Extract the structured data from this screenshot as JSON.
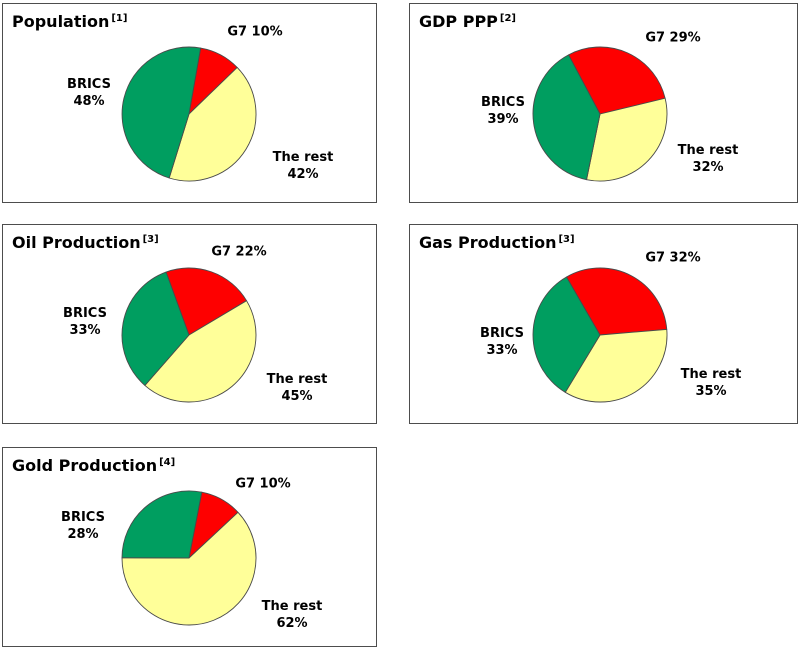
{
  "colors": {
    "g7": "#fe0000",
    "brics": "#009e60",
    "rest": "#ffff99",
    "slice_outline": "#4a4a4a",
    "panel_border": "#4d4d4d",
    "text": "#000000",
    "background": "#ffffff"
  },
  "chart_data": [
    {
      "type": "pie",
      "title": "Population",
      "footnote_ref": "[1]",
      "legend_position": "around",
      "clockwise": true,
      "start_angle_deg": 10,
      "slices": [
        {
          "label": "G7",
          "value": 10,
          "color": "#fe0000"
        },
        {
          "label": "The rest",
          "value": 42,
          "color": "#ffff99"
        },
        {
          "label": "BRICS",
          "value": 48,
          "color": "#009e60"
        }
      ],
      "labels": {
        "g7": "G7 10%",
        "brics_name": "BRICS",
        "brics_value": "48%",
        "rest_name": "The rest",
        "rest_value": "42%"
      }
    },
    {
      "type": "pie",
      "title": "GDP PPP",
      "footnote_ref": "[2]",
      "legend_position": "around",
      "clockwise": true,
      "start_angle_deg": -28,
      "slices": [
        {
          "label": "G7",
          "value": 29,
          "color": "#fe0000"
        },
        {
          "label": "The rest",
          "value": 32,
          "color": "#ffff99"
        },
        {
          "label": "BRICS",
          "value": 39,
          "color": "#009e60"
        }
      ],
      "labels": {
        "g7": "G7 29%",
        "brics_name": "BRICS",
        "brics_value": "39%",
        "rest_name": "The rest",
        "rest_value": "32%"
      }
    },
    {
      "type": "pie",
      "title": "Oil Production",
      "footnote_ref": "[3]",
      "legend_position": "around",
      "clockwise": true,
      "start_angle_deg": -20,
      "slices": [
        {
          "label": "G7",
          "value": 22,
          "color": "#fe0000"
        },
        {
          "label": "The rest",
          "value": 45,
          "color": "#ffff99"
        },
        {
          "label": "BRICS",
          "value": 33,
          "color": "#009e60"
        }
      ],
      "labels": {
        "g7": "G7 22%",
        "brics_name": "BRICS",
        "brics_value": "33%",
        "rest_name": "The rest",
        "rest_value": "45%"
      }
    },
    {
      "type": "pie",
      "title": "Gas Production",
      "footnote_ref": "[3]",
      "legend_position": "around",
      "clockwise": true,
      "start_angle_deg": -30,
      "slices": [
        {
          "label": "G7",
          "value": 32,
          "color": "#fe0000"
        },
        {
          "label": "The rest",
          "value": 35,
          "color": "#ffff99"
        },
        {
          "label": "BRICS",
          "value": 33,
          "color": "#009e60"
        }
      ],
      "labels": {
        "g7": "G7 32%",
        "brics_name": "BRICS",
        "brics_value": "33%",
        "rest_name": "The rest",
        "rest_value": "35%"
      }
    },
    {
      "type": "pie",
      "title": "Gold Production",
      "footnote_ref": "[4]",
      "legend_position": "around",
      "clockwise": true,
      "start_angle_deg": 11,
      "slices": [
        {
          "label": "G7",
          "value": 10,
          "color": "#fe0000"
        },
        {
          "label": "The rest",
          "value": 62,
          "color": "#ffff99"
        },
        {
          "label": "BRICS",
          "value": 28,
          "color": "#009e60"
        }
      ],
      "labels": {
        "g7": "G7 10%",
        "brics_name": "BRICS",
        "brics_value": "28%",
        "rest_name": "The rest",
        "rest_value": "62%"
      }
    }
  ]
}
